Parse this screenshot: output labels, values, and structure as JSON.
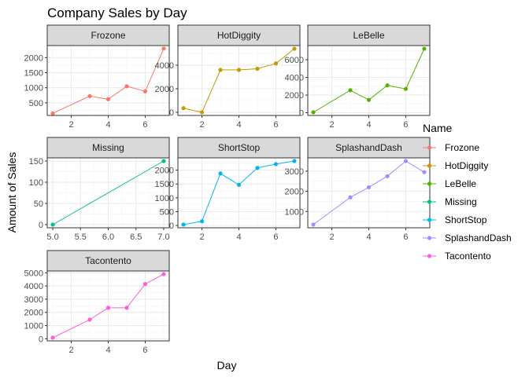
{
  "chart_data": {
    "type": "line",
    "title": "Company Sales by Day",
    "xlabel": "Day",
    "ylabel": "Amount of Sales",
    "facet_scales": "free",
    "grid": true,
    "legend": {
      "title": "Name",
      "position": "right",
      "entries": [
        "Frozone",
        "HotDiggity",
        "LeBelle",
        "Missing",
        "ShortStop",
        "SplashandDash",
        "Tacontento"
      ]
    },
    "series": [
      {
        "name": "Frozone",
        "color": "#F8766D",
        "x": [
          1,
          3,
          4,
          5,
          6,
          7
        ],
        "values": [
          150,
          720,
          620,
          1050,
          880,
          2300
        ],
        "xlim": [
          0.7,
          7.3
        ],
        "ylim": [
          80,
          2400
        ],
        "x_ticks": [
          2,
          4,
          6
        ],
        "y_ticks": [
          500,
          1000,
          1500,
          2000
        ]
      },
      {
        "name": "HotDiggity",
        "color": "#C49A00",
        "x": [
          1,
          2,
          3,
          4,
          5,
          6,
          7
        ],
        "values": [
          350,
          0,
          3600,
          3600,
          3700,
          4150,
          5400
        ],
        "xlim": [
          0.7,
          7.3
        ],
        "ylim": [
          -270,
          5670
        ],
        "x_ticks": [
          2,
          4,
          6
        ],
        "y_ticks": [
          0,
          2000,
          4000
        ]
      },
      {
        "name": "LeBelle",
        "color": "#53B400",
        "x": [
          1,
          3,
          4,
          5,
          6,
          7
        ],
        "values": [
          50,
          2550,
          1450,
          3100,
          2700,
          7250
        ],
        "xlim": [
          0.7,
          7.3
        ],
        "ylim": [
          -310,
          7610
        ],
        "x_ticks": [
          2,
          4,
          6
        ],
        "y_ticks": [
          0,
          2000,
          4000,
          6000
        ]
      },
      {
        "name": "Missing",
        "color": "#00C094",
        "x": [
          5,
          7
        ],
        "values": [
          0,
          150
        ],
        "xlim": [
          4.9,
          7.1
        ],
        "ylim": [
          -7.5,
          157.5
        ],
        "x_ticks": [
          5.0,
          5.5,
          6.0,
          6.5,
          7.0
        ],
        "x_tick_labels": [
          "5.0",
          "5.5",
          "6.0",
          "6.5",
          "7.0"
        ],
        "y_ticks": [
          0,
          50,
          100,
          150
        ]
      },
      {
        "name": "ShortStop",
        "color": "#00B6EB",
        "x": [
          1,
          2,
          3,
          4,
          5,
          6,
          7
        ],
        "values": [
          30,
          150,
          1880,
          1470,
          2080,
          2220,
          2330
        ],
        "xlim": [
          0.7,
          7.3
        ],
        "ylim": [
          -85,
          2445
        ],
        "x_ticks": [
          2,
          4,
          6
        ],
        "y_ticks": [
          0,
          500,
          1000,
          1500,
          2000
        ]
      },
      {
        "name": "SplashandDash",
        "color": "#A58AFF",
        "x": [
          1,
          3,
          4,
          5,
          6,
          7
        ],
        "values": [
          350,
          1700,
          2200,
          2750,
          3500,
          2950
        ],
        "xlim": [
          0.7,
          7.3
        ],
        "ylim": [
          192,
          3658
        ],
        "x_ticks": [
          2,
          4,
          6
        ],
        "y_ticks": [
          1000,
          2000,
          3000
        ]
      },
      {
        "name": "Tacontento",
        "color": "#FB61D7",
        "x": [
          1,
          3,
          4,
          5,
          6,
          7
        ],
        "values": [
          80,
          1450,
          2350,
          2350,
          4150,
          4900
        ],
        "xlim": [
          0.7,
          7.3
        ],
        "ylim": [
          -160,
          5140
        ],
        "x_ticks": [
          2,
          4,
          6
        ],
        "y_ticks": [
          0,
          1000,
          2000,
          3000,
          4000,
          5000
        ]
      }
    ]
  }
}
